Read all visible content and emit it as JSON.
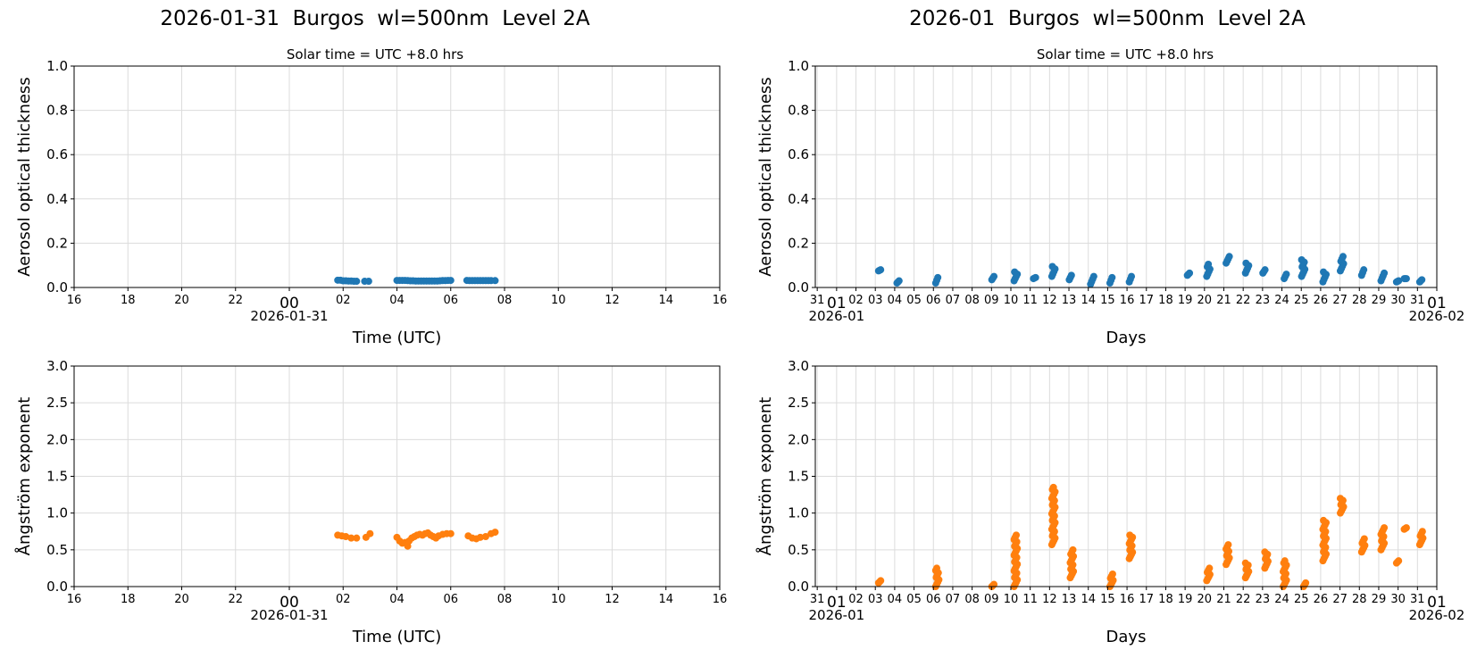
{
  "left": {
    "title": "2026-01-31  Burgos  wl=500nm  Level 2A",
    "subtitle": "Solar time = UTC +8.0 hrs"
  },
  "right": {
    "title": "2026-01  Burgos  wl=500nm  Level 2A",
    "subtitle": "Solar time = UTC +8.0 hrs"
  },
  "colors": {
    "aod": "#1f77b4",
    "angstrom": "#ff7f0e",
    "grid": "#dcdcdc"
  },
  "chart_data": [
    {
      "id": "daily-aod",
      "type": "scatter",
      "title": "2026-01-31  Burgos  wl=500nm  Level 2A",
      "subtitle": "Solar time = UTC +8.0 hrs",
      "xlabel": "Time (UTC)",
      "ylabel": "Aerosol optical thickness",
      "xticks": [
        "16",
        "18",
        "20",
        "22",
        "00",
        "02",
        "04",
        "06",
        "08",
        "10",
        "12",
        "14",
        "16"
      ],
      "x_date_label": "2026-01-31",
      "xlim_hours": [
        -8,
        16
      ],
      "ylim": [
        0,
        1.0
      ],
      "yticks": [
        "0.0",
        "0.2",
        "0.4",
        "0.6",
        "0.8",
        "1.0"
      ],
      "grid": true,
      "color": "#1f77b4",
      "x": [
        1.8,
        1.9,
        2.0,
        2.1,
        2.2,
        2.3,
        2.4,
        2.5,
        2.8,
        2.95,
        4.0,
        4.1,
        4.2,
        4.3,
        4.4,
        4.5,
        4.6,
        4.7,
        4.8,
        4.9,
        5.0,
        5.1,
        5.2,
        5.3,
        5.4,
        5.5,
        5.6,
        5.7,
        5.8,
        5.9,
        6.0,
        6.6,
        6.7,
        6.8,
        6.9,
        7.0,
        7.1,
        7.2,
        7.3,
        7.4,
        7.5,
        7.65
      ],
      "y": [
        0.033,
        0.033,
        0.03,
        0.03,
        0.029,
        0.029,
        0.028,
        0.028,
        0.028,
        0.028,
        0.032,
        0.032,
        0.032,
        0.032,
        0.031,
        0.03,
        0.03,
        0.029,
        0.029,
        0.029,
        0.029,
        0.029,
        0.029,
        0.029,
        0.029,
        0.029,
        0.03,
        0.031,
        0.031,
        0.032,
        0.032,
        0.032,
        0.031,
        0.031,
        0.031,
        0.031,
        0.031,
        0.031,
        0.031,
        0.031,
        0.031,
        0.031
      ]
    },
    {
      "id": "daily-angstrom",
      "type": "scatter",
      "xlabel": "Time (UTC)",
      "ylabel": "Ångström exponent",
      "xticks": [
        "16",
        "18",
        "20",
        "22",
        "00",
        "02",
        "04",
        "06",
        "08",
        "10",
        "12",
        "14",
        "16"
      ],
      "x_date_label": "2026-01-31",
      "xlim_hours": [
        -8,
        16
      ],
      "ylim": [
        0,
        3.0
      ],
      "yticks": [
        "0.0",
        "0.5",
        "1.0",
        "1.5",
        "2.0",
        "2.5",
        "3.0"
      ],
      "grid": true,
      "color": "#ff7f0e",
      "x": [
        1.8,
        1.95,
        2.1,
        2.3,
        2.5,
        2.85,
        3.0,
        4.0,
        4.1,
        4.2,
        4.3,
        4.4,
        4.45,
        4.55,
        4.65,
        4.75,
        4.85,
        4.95,
        5.05,
        5.15,
        5.25,
        5.35,
        5.45,
        5.55,
        5.7,
        5.85,
        6.0,
        6.65,
        6.8,
        6.95,
        7.1,
        7.3,
        7.5,
        7.65
      ],
      "y": [
        0.7,
        0.69,
        0.68,
        0.66,
        0.66,
        0.67,
        0.72,
        0.67,
        0.62,
        0.59,
        0.6,
        0.55,
        0.62,
        0.66,
        0.68,
        0.7,
        0.71,
        0.7,
        0.72,
        0.73,
        0.7,
        0.68,
        0.66,
        0.69,
        0.71,
        0.72,
        0.72,
        0.69,
        0.66,
        0.65,
        0.67,
        0.68,
        0.72,
        0.74
      ]
    },
    {
      "id": "monthly-aod",
      "type": "scatter",
      "title": "2026-01  Burgos  wl=500nm  Level 2A",
      "subtitle": "Solar time = UTC +8.0 hrs",
      "xlabel": "Days",
      "ylabel": "Aerosol optical thickness",
      "xticks": [
        "31",
        "01",
        "02",
        "03",
        "04",
        "05",
        "06",
        "07",
        "08",
        "09",
        "10",
        "11",
        "12",
        "13",
        "14",
        "15",
        "16",
        "17",
        "18",
        "19",
        "20",
        "21",
        "22",
        "23",
        "24",
        "25",
        "26",
        "27",
        "28",
        "29",
        "30",
        "31",
        "01"
      ],
      "x_month_labels": [
        "2026-01",
        "2026-02"
      ],
      "xlim_days": [
        -0.1,
        32.0
      ],
      "ylim": [
        0,
        1.0
      ],
      "yticks": [
        "0.0",
        "0.2",
        "0.4",
        "0.6",
        "0.8",
        "1.0"
      ],
      "grid": true,
      "color": "#1f77b4",
      "clusters": [
        {
          "day": 3.25,
          "min": 0.075,
          "max": 0.08
        },
        {
          "day": 4.2,
          "min": 0.02,
          "max": 0.03
        },
        {
          "day": 6.2,
          "min": 0.02,
          "max": 0.045
        },
        {
          "day": 9.1,
          "min": 0.035,
          "max": 0.05
        },
        {
          "day": 10.25,
          "min": 0.03,
          "max": 0.07
        },
        {
          "day": 11.25,
          "min": 0.04,
          "max": 0.045
        },
        {
          "day": 12.2,
          "min": 0.05,
          "max": 0.095
        },
        {
          "day": 13.1,
          "min": 0.035,
          "max": 0.055
        },
        {
          "day": 14.2,
          "min": 0.015,
          "max": 0.05
        },
        {
          "day": 15.2,
          "min": 0.02,
          "max": 0.045
        },
        {
          "day": 16.2,
          "min": 0.025,
          "max": 0.05
        },
        {
          "day": 19.2,
          "min": 0.055,
          "max": 0.065
        },
        {
          "day": 20.2,
          "min": 0.05,
          "max": 0.105
        },
        {
          "day": 21.2,
          "min": 0.11,
          "max": 0.14
        },
        {
          "day": 22.2,
          "min": 0.065,
          "max": 0.11
        },
        {
          "day": 23.1,
          "min": 0.065,
          "max": 0.08
        },
        {
          "day": 24.2,
          "min": 0.04,
          "max": 0.06
        },
        {
          "day": 25.1,
          "min": 0.05,
          "max": 0.125
        },
        {
          "day": 26.2,
          "min": 0.025,
          "max": 0.07
        },
        {
          "day": 27.1,
          "min": 0.075,
          "max": 0.14
        },
        {
          "day": 28.2,
          "min": 0.055,
          "max": 0.08
        },
        {
          "day": 29.2,
          "min": 0.03,
          "max": 0.065
        },
        {
          "day": 30.0,
          "min": 0.025,
          "max": 0.03
        },
        {
          "day": 30.4,
          "min": 0.04,
          "max": 0.04
        },
        {
          "day": 31.2,
          "min": 0.025,
          "max": 0.035
        }
      ]
    },
    {
      "id": "monthly-angstrom",
      "type": "scatter",
      "xlabel": "Days",
      "ylabel": "Ångström exponent",
      "xticks": [
        "31",
        "01",
        "02",
        "03",
        "04",
        "05",
        "06",
        "07",
        "08",
        "09",
        "10",
        "11",
        "12",
        "13",
        "14",
        "15",
        "16",
        "17",
        "18",
        "19",
        "20",
        "21",
        "22",
        "23",
        "24",
        "25",
        "26",
        "27",
        "28",
        "29",
        "30",
        "31",
        "01"
      ],
      "x_month_labels": [
        "2026-01",
        "2026-02"
      ],
      "xlim_days": [
        -0.1,
        32.0
      ],
      "ylim": [
        0,
        3.0
      ],
      "yticks": [
        "0.0",
        "0.5",
        "1.0",
        "1.5",
        "2.0",
        "2.5",
        "3.0"
      ],
      "grid": true,
      "color": "#ff7f0e",
      "clusters": [
        {
          "day": 3.25,
          "min": 0.05,
          "max": 0.08
        },
        {
          "day": 6.2,
          "min": 0.0,
          "max": 0.25
        },
        {
          "day": 9.1,
          "min": 0.0,
          "max": 0.03
        },
        {
          "day": 10.25,
          "min": 0.0,
          "max": 0.7
        },
        {
          "day": 12.2,
          "min": 0.57,
          "max": 1.35
        },
        {
          "day": 13.15,
          "min": 0.12,
          "max": 0.5
        },
        {
          "day": 15.2,
          "min": 0.0,
          "max": 0.17
        },
        {
          "day": 16.2,
          "min": 0.38,
          "max": 0.7
        },
        {
          "day": 20.2,
          "min": 0.08,
          "max": 0.25
        },
        {
          "day": 21.2,
          "min": 0.3,
          "max": 0.57
        },
        {
          "day": 22.2,
          "min": 0.12,
          "max": 0.32
        },
        {
          "day": 23.2,
          "min": 0.25,
          "max": 0.47
        },
        {
          "day": 24.15,
          "min": 0.0,
          "max": 0.35
        },
        {
          "day": 25.2,
          "min": 0.0,
          "max": 0.05
        },
        {
          "day": 26.2,
          "min": 0.35,
          "max": 0.9
        },
        {
          "day": 27.1,
          "min": 1.0,
          "max": 1.2
        },
        {
          "day": 28.2,
          "min": 0.47,
          "max": 0.65
        },
        {
          "day": 29.2,
          "min": 0.5,
          "max": 0.8
        },
        {
          "day": 30.0,
          "min": 0.32,
          "max": 0.35
        },
        {
          "day": 30.4,
          "min": 0.78,
          "max": 0.8
        },
        {
          "day": 31.2,
          "min": 0.57,
          "max": 0.75
        }
      ]
    }
  ]
}
